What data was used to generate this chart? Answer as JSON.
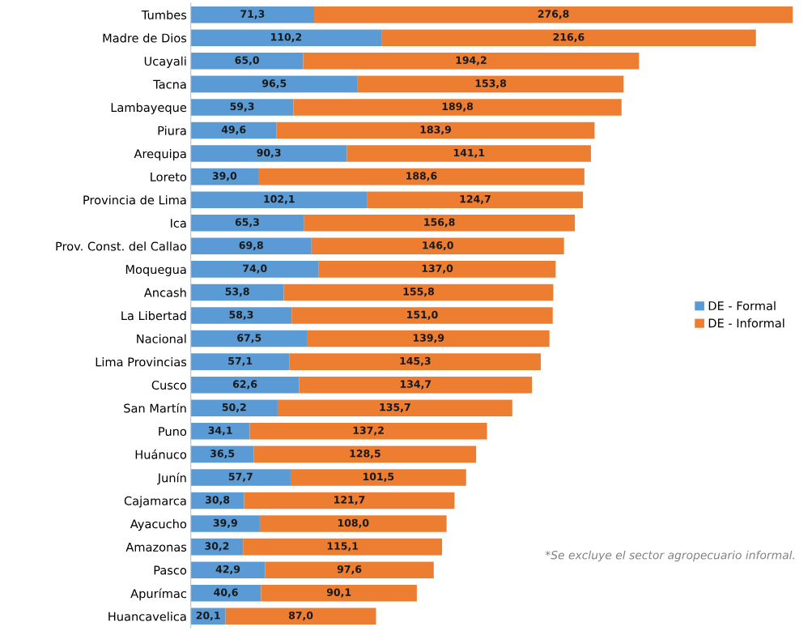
{
  "chart_data": {
    "type": "bar",
    "orientation": "horizontal",
    "stacked": true,
    "legend": "right",
    "grid": false,
    "categories": [
      "Tumbes",
      "Madre de Dios",
      "Ucayali",
      "Tacna",
      "Lambayeque",
      "Piura",
      "Arequipa",
      "Loreto",
      "Provincia de Lima",
      "Ica",
      "Prov. Const. del Callao",
      "Moquegua",
      "Ancash",
      "La Libertad",
      "Nacional",
      "Lima Provincias",
      "Cusco",
      "San Martín",
      "Puno",
      "Huánuco",
      "Junín",
      "Cajamarca",
      "Ayacucho",
      "Amazonas",
      "Pasco",
      "Apurímac",
      "Huancavelica"
    ],
    "series": [
      {
        "name": "DE - Formal",
        "color": "#5b9bd5",
        "values": [
          71.3,
          110.2,
          65.0,
          96.5,
          59.3,
          49.6,
          90.3,
          39.0,
          102.1,
          65.3,
          69.8,
          74.0,
          53.8,
          58.3,
          67.5,
          57.1,
          62.6,
          50.2,
          34.1,
          36.5,
          57.7,
          30.8,
          39.9,
          30.2,
          42.9,
          40.6,
          20.1
        ],
        "value_labels": [
          "71,3",
          "110,2",
          "65,0",
          "96,5",
          "59,3",
          "49,6",
          "90,3",
          "39,0",
          "102,1",
          "65,3",
          "69,8",
          "74,0",
          "53,8",
          "58,3",
          "67,5",
          "57,1",
          "62,6",
          "50,2",
          "34,1",
          "36,5",
          "57,7",
          "30,8",
          "39,9",
          "30,2",
          "42,9",
          "40,6",
          "20,1"
        ]
      },
      {
        "name": "DE - Informal",
        "color": "#ed7d31",
        "values": [
          276.8,
          216.6,
          194.2,
          153.8,
          189.8,
          183.9,
          141.1,
          188.6,
          124.7,
          156.8,
          146.0,
          137.0,
          155.8,
          151.0,
          139.9,
          145.3,
          134.7,
          135.7,
          137.2,
          128.5,
          101.5,
          121.7,
          108.0,
          115.1,
          97.6,
          90.1,
          87.0
        ],
        "value_labels": [
          "276,8",
          "216,6",
          "194,2",
          "153,8",
          "189,8",
          "183,9",
          "141,1",
          "188,6",
          "124,7",
          "156,8",
          "146,0",
          "137,0",
          "155,8",
          "151,0",
          "139,9",
          "145,3",
          "134,7",
          "135,7",
          "137,2",
          "128,5",
          "101,5",
          "121,7",
          "108,0",
          "115,1",
          "97,6",
          "90,1",
          "87,0"
        ]
      }
    ],
    "annotations": [
      "*Se excluye el sector agropecuario informal."
    ]
  }
}
